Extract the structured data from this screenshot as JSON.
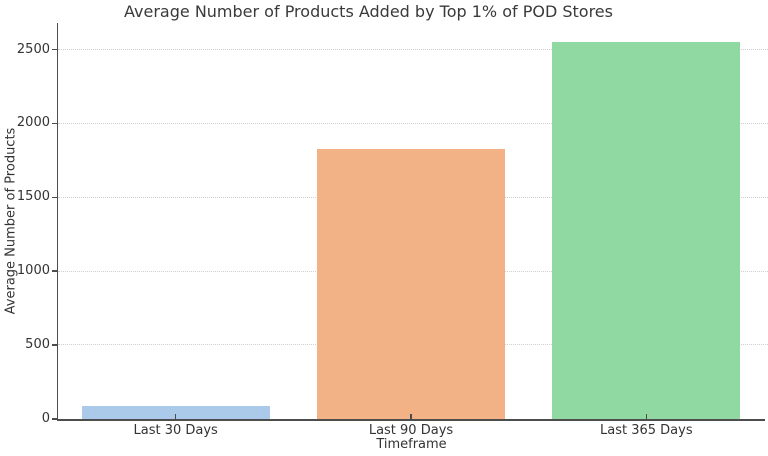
{
  "chart_data": {
    "type": "bar",
    "title": "Average Number of Products Added by Top 1% of POD Stores",
    "xlabel": "Timeframe",
    "ylabel": "Average Number of Products",
    "categories": [
      "Last 30 Days",
      "Last 90 Days",
      "Last 365 Days"
    ],
    "values": [
      85,
      1825,
      2550
    ],
    "bar_colors": [
      "#abc9e8",
      "#f2b286",
      "#90d9a3"
    ],
    "yticks": [
      0,
      500,
      1000,
      1500,
      2000,
      2500
    ],
    "ylim": [
      0,
      2680
    ],
    "grid": "horizontal-dotted",
    "legend_position": "none",
    "background_color": "#ffffff",
    "axis_color": "#4d4d4d",
    "grid_color": "#cfcfcf",
    "text_color": "#343434"
  }
}
